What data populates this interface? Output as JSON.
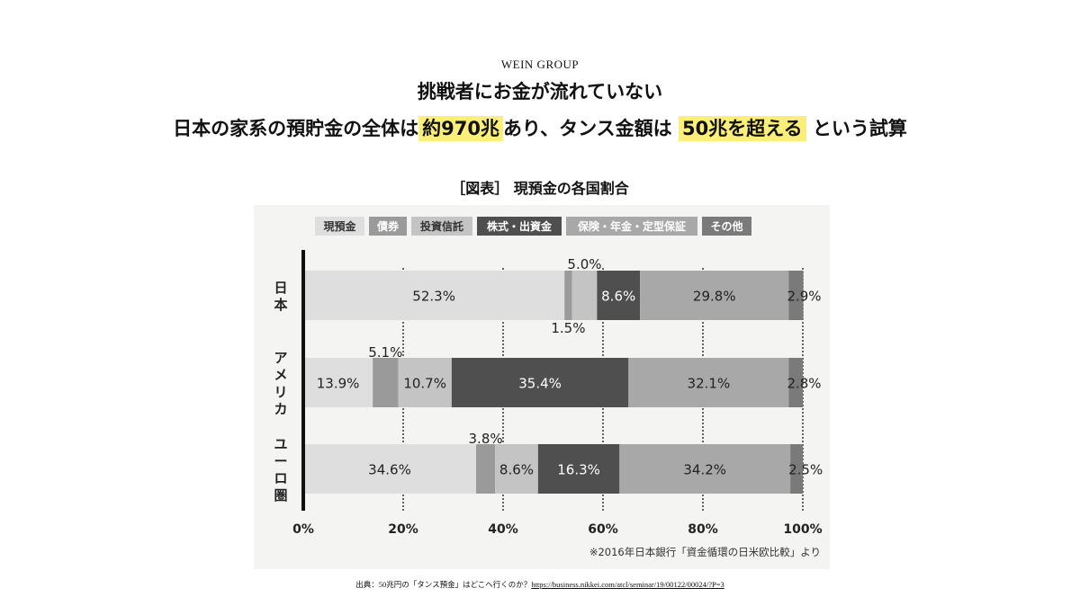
{
  "header": {
    "brand": "WEIN GROUP",
    "title": "挑戦者にお金が流れていない",
    "subtitle": {
      "part1": "日本の家系の預貯金の全体は",
      "highlight1": "約970兆",
      "part2": "あり、タンス金額は",
      "highlight2": "50兆を超える",
      "part3": "という試算"
    }
  },
  "chart_caption": "［図表］ 現預金の各国割合",
  "note": "※2016年日本銀行「資金循環の日米欧比較」より",
  "source": {
    "prefix": "出典：50兆円の「タンス預金」はどこへ行くのか？",
    "url": "https://business.nikkei.com/atcl/seminar/19/00122/00024/?P=3"
  },
  "colors": {
    "highlight": "#fbef7a",
    "legend_bg": "#ffffff"
  },
  "chart_data": {
    "type": "bar",
    "orientation": "horizontal-stacked",
    "categories": [
      "日本",
      "アメリカ",
      "ユーロ圏"
    ],
    "series": [
      {
        "name": "現預金",
        "values": [
          52.3,
          13.9,
          34.6
        ],
        "color": "#dedede",
        "label_color": "#222222",
        "legend_text": "#333333"
      },
      {
        "name": "債券",
        "values": [
          1.5,
          5.1,
          3.8
        ],
        "color": "#9a9a9a",
        "label_color": "#222222",
        "legend_text": "#ffffff"
      },
      {
        "name": "投資信託",
        "values": [
          5.0,
          10.7,
          8.6
        ],
        "color": "#c4c4c4",
        "label_color": "#222222",
        "legend_text": "#333333"
      },
      {
        "name": "株式・出資金",
        "values": [
          8.6,
          35.4,
          16.3
        ],
        "color": "#4f4f4f",
        "label_color": "#ffffff",
        "legend_text": "#ffffff"
      },
      {
        "name": "保険・年金・定型保証",
        "values": [
          29.8,
          32.1,
          34.2
        ],
        "color": "#a8a8a8",
        "label_color": "#222222",
        "legend_text": "#ffffff"
      },
      {
        "name": "その他",
        "values": [
          2.9,
          2.8,
          2.5
        ],
        "color": "#7a7a7a",
        "label_color": "#222222",
        "legend_text": "#ffffff"
      }
    ],
    "labels": [
      [
        "52.3%",
        "1.5%",
        "5.0%",
        "8.6%",
        "29.8%",
        "2.9%"
      ],
      [
        "13.9%",
        "5.1%",
        "10.7%",
        "35.4%",
        "32.1%",
        "2.8%"
      ],
      [
        "34.6%",
        "3.8%",
        "8.6%",
        "16.3%",
        "34.2%",
        "2.5%"
      ]
    ],
    "xlim": [
      0,
      100
    ],
    "xticks": [
      0,
      20,
      40,
      60,
      80,
      100
    ],
    "xtick_labels": [
      "0%",
      "20%",
      "40%",
      "60%",
      "80%",
      "100%"
    ],
    "grid": "dotted vertical",
    "legend": "top"
  }
}
